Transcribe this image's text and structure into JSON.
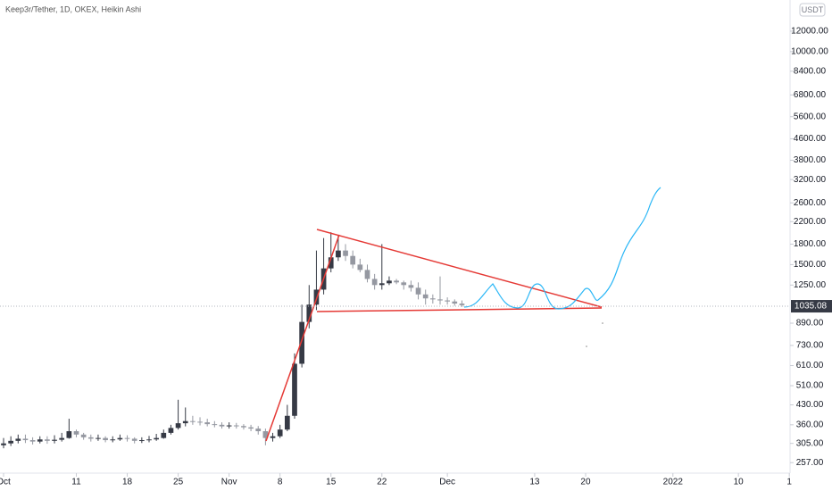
{
  "chart_data": {
    "type": "candlestick",
    "title": "Keep3r/Tether, 1D, OKEX, Heikin Ashi",
    "currency": "USDT",
    "log_scale": true,
    "up_color": "#363a45",
    "down_color": "#9598a1",
    "open": [
      300,
      305,
      312,
      318,
      314,
      310,
      316,
      312,
      315,
      320,
      340,
      330,
      322,
      318,
      320,
      314,
      316,
      320,
      318,
      312,
      314,
      316,
      320,
      335,
      350,
      365,
      372,
      370,
      368,
      362,
      360,
      355,
      358,
      356,
      352,
      348,
      340,
      320,
      325,
      345,
      390,
      620,
      900,
      1050,
      1200,
      1450,
      1600,
      1700,
      1620,
      1500,
      1430,
      1320,
      1250,
      1270,
      1300,
      1280,
      1250,
      1220,
      1150,
      1110,
      1100,
      1090,
      1080,
      1060
    ],
    "high": [
      320,
      325,
      330,
      330,
      322,
      325,
      325,
      328,
      335,
      380,
      345,
      335,
      330,
      330,
      325,
      325,
      330,
      328,
      322,
      322,
      326,
      332,
      345,
      360,
      450,
      420,
      390,
      385,
      380,
      372,
      368,
      368,
      366,
      362,
      360,
      356,
      348,
      335,
      360,
      430,
      680,
      1050,
      1250,
      1700,
      1900,
      2000,
      1950,
      1800,
      1700,
      1580,
      1500,
      1380,
      1800,
      1350,
      1320,
      1300,
      1300,
      1280,
      1200,
      1150,
      1350,
      1120,
      1100,
      1090
    ],
    "low": [
      292,
      298,
      305,
      306,
      302,
      305,
      304,
      305,
      310,
      318,
      322,
      315,
      310,
      312,
      308,
      308,
      312,
      310,
      305,
      306,
      308,
      312,
      318,
      330,
      345,
      355,
      360,
      358,
      355,
      352,
      348,
      348,
      348,
      345,
      340,
      330,
      300,
      310,
      320,
      340,
      380,
      600,
      850,
      1000,
      1150,
      1400,
      1550,
      1550,
      1450,
      1400,
      1280,
      1200,
      1200,
      1250,
      1260,
      1200,
      1180,
      1100,
      1050,
      1060,
      1050,
      1050,
      1040,
      1030
    ],
    "close": [
      305,
      312,
      318,
      314,
      310,
      316,
      312,
      315,
      320,
      340,
      330,
      322,
      318,
      320,
      314,
      316,
      320,
      318,
      312,
      314,
      316,
      320,
      335,
      350,
      365,
      372,
      370,
      368,
      362,
      360,
      355,
      358,
      356,
      352,
      348,
      340,
      320,
      325,
      345,
      390,
      620,
      900,
      1050,
      1200,
      1450,
      1600,
      1700,
      1620,
      1500,
      1430,
      1320,
      1250,
      1270,
      1300,
      1280,
      1250,
      1220,
      1150,
      1110,
      1100,
      1090,
      1080,
      1060,
      1045
    ],
    "last_price": 1035.08,
    "xlim": [
      -0.49,
      108.1
    ],
    "xticks": [
      {
        "value": 0,
        "label": "Oct"
      },
      {
        "value": 10,
        "label": "11"
      },
      {
        "value": 17,
        "label": "18"
      },
      {
        "value": 24,
        "label": "25"
      },
      {
        "value": 31,
        "label": "Nov"
      },
      {
        "value": 38,
        "label": "8"
      },
      {
        "value": 45,
        "label": "15"
      },
      {
        "value": 52,
        "label": "22"
      },
      {
        "value": 61,
        "label": "Dec"
      },
      {
        "value": 73,
        "label": "13"
      },
      {
        "value": 80,
        "label": "20"
      },
      {
        "value": 92,
        "label": "2022"
      },
      {
        "value": 101,
        "label": "10"
      },
      {
        "value": 108,
        "label": "1"
      }
    ],
    "ylim": [
      234,
      15840
    ],
    "yticks": [
      {
        "value": 257,
        "label": "257.00"
      },
      {
        "value": 305,
        "label": "305.00"
      },
      {
        "value": 360,
        "label": "360.00"
      },
      {
        "value": 430,
        "label": "430.00"
      },
      {
        "value": 510,
        "label": "510.00"
      },
      {
        "value": 610,
        "label": "610.00"
      },
      {
        "value": 730,
        "label": "730.00"
      },
      {
        "value": 890,
        "label": "890.00"
      },
      {
        "value": 1250,
        "label": "1250.00"
      },
      {
        "value": 1500,
        "label": "1500.00"
      },
      {
        "value": 1800,
        "label": "1800.00"
      },
      {
        "value": 2200,
        "label": "2200.00"
      },
      {
        "value": 2600,
        "label": "2600.00"
      },
      {
        "value": 3200,
        "label": "3200.00"
      },
      {
        "value": 3800,
        "label": "3800.00"
      },
      {
        "value": 4600,
        "label": "4600.00"
      },
      {
        "value": 5600,
        "label": "5600.00"
      },
      {
        "value": 6800,
        "label": "6800.00"
      },
      {
        "value": 8400,
        "label": "8400.00"
      },
      {
        "value": 10000,
        "label": "10000.00"
      },
      {
        "value": 12000,
        "label": "12000.00"
      }
    ]
  }
}
